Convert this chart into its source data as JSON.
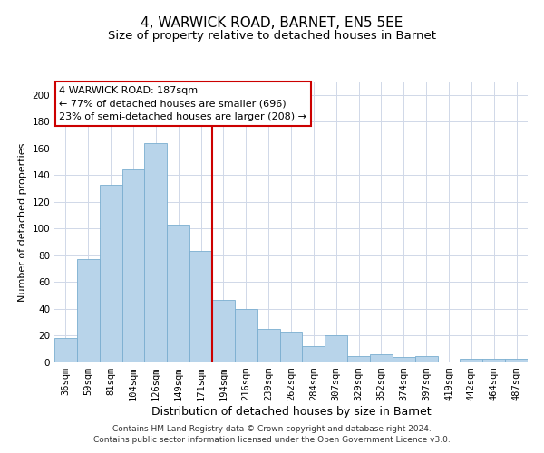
{
  "title": "4, WARWICK ROAD, BARNET, EN5 5EE",
  "subtitle": "Size of property relative to detached houses in Barnet",
  "xlabel": "Distribution of detached houses by size in Barnet",
  "ylabel": "Number of detached properties",
  "bar_labels": [
    "36sqm",
    "59sqm",
    "81sqm",
    "104sqm",
    "126sqm",
    "149sqm",
    "171sqm",
    "194sqm",
    "216sqm",
    "239sqm",
    "262sqm",
    "284sqm",
    "307sqm",
    "329sqm",
    "352sqm",
    "374sqm",
    "397sqm",
    "419sqm",
    "442sqm",
    "464sqm",
    "487sqm"
  ],
  "bar_values": [
    18,
    77,
    133,
    144,
    164,
    103,
    83,
    47,
    40,
    25,
    23,
    12,
    20,
    5,
    6,
    4,
    5,
    0,
    3,
    3,
    3
  ],
  "bar_color": "#b8d4ea",
  "bar_edge_color": "#7aaed0",
  "vline_color": "#cc0000",
  "ylim": [
    0,
    210
  ],
  "yticks": [
    0,
    20,
    40,
    60,
    80,
    100,
    120,
    140,
    160,
    180,
    200
  ],
  "annotation_title": "4 WARWICK ROAD: 187sqm",
  "annotation_line1": "← 77% of detached houses are smaller (696)",
  "annotation_line2": "23% of semi-detached houses are larger (208) →",
  "annotation_box_color": "#ffffff",
  "annotation_box_edge": "#cc0000",
  "footer_line1": "Contains HM Land Registry data © Crown copyright and database right 2024.",
  "footer_line2": "Contains public sector information licensed under the Open Government Licence v3.0.",
  "title_fontsize": 11,
  "subtitle_fontsize": 9.5,
  "xlabel_fontsize": 9,
  "ylabel_fontsize": 8,
  "tick_fontsize": 7.5,
  "annotation_fontsize": 8,
  "footer_fontsize": 6.5,
  "background_color": "#ffffff",
  "grid_color": "#d0d8e8"
}
